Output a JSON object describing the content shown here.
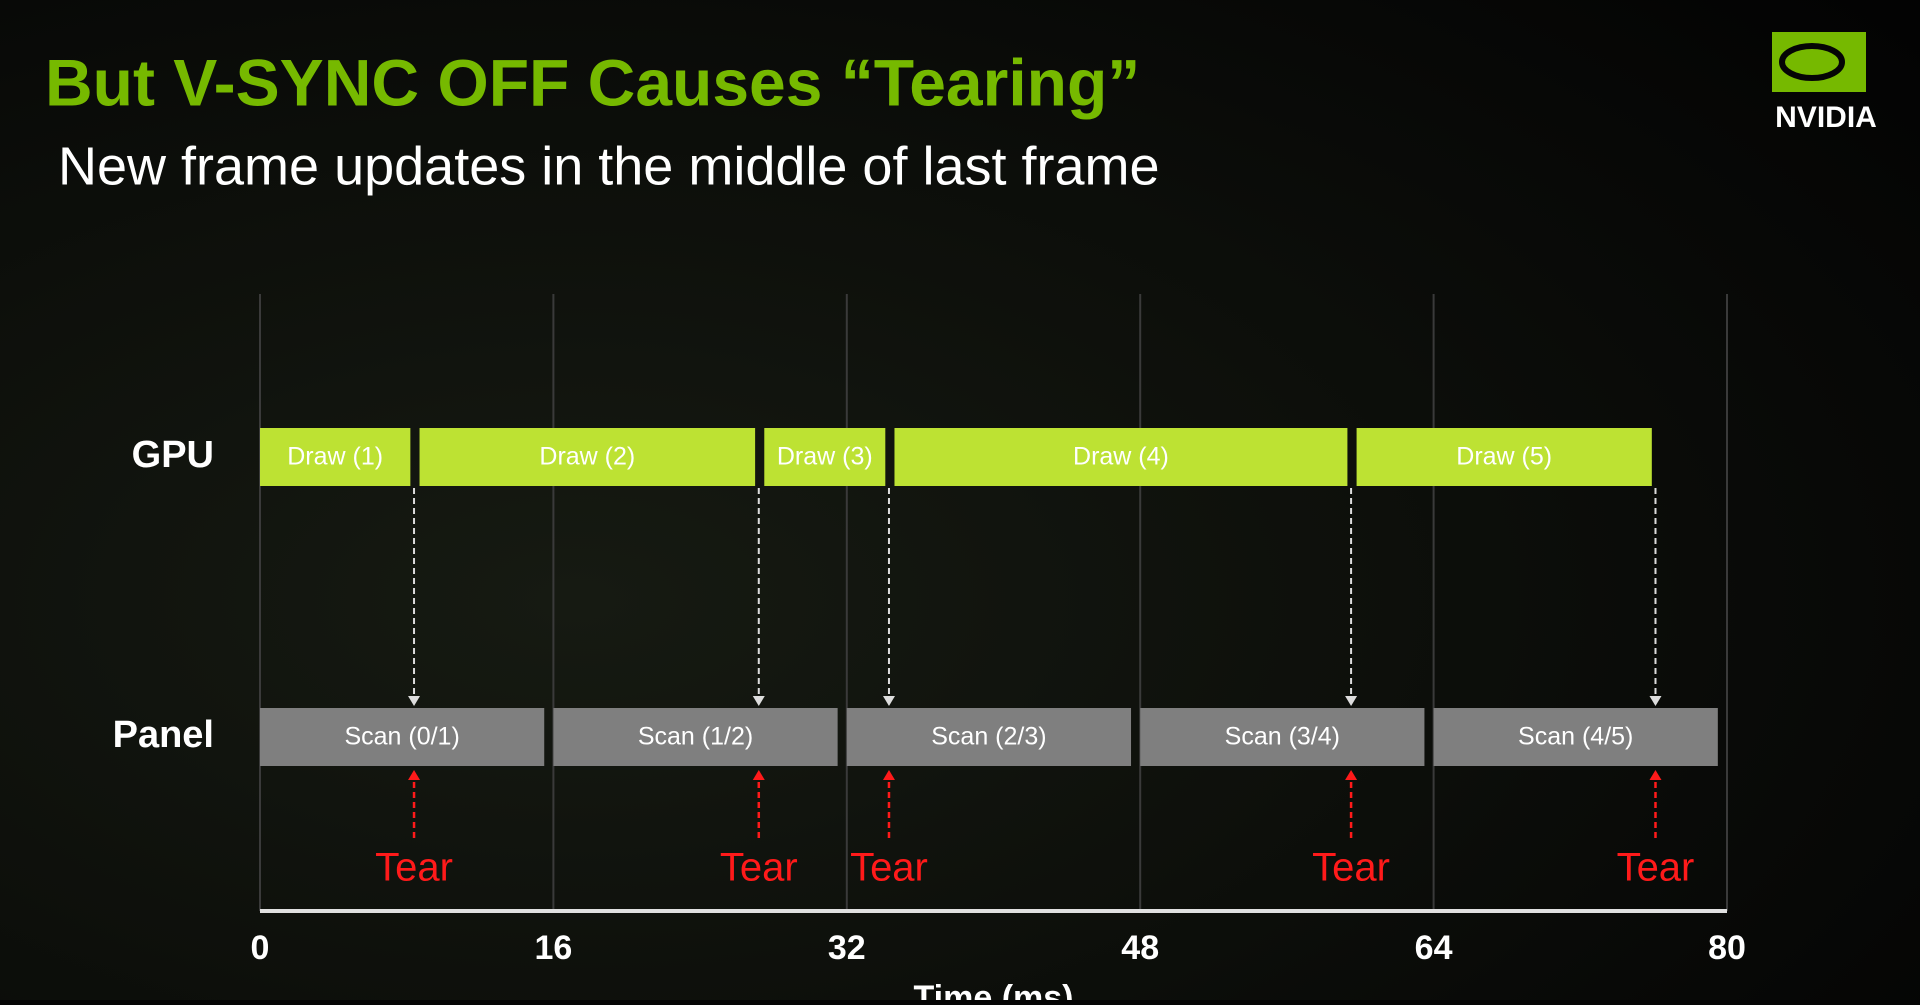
{
  "brand": "NVIDIA",
  "chart_data": {
    "type": "timeline",
    "title": "But V-SYNC OFF Causes “Tearing”",
    "subtitle": "New frame updates in the middle of last frame",
    "x_label": "Time (ms)",
    "xlim": [
      0,
      80
    ],
    "xticks": [
      0,
      16,
      32,
      48,
      64,
      80
    ],
    "grid": true,
    "rows": [
      {
        "name": "GPU",
        "color": "#bde233",
        "labels": [
          "Draw (1)",
          "Draw (2)",
          "Draw (3)",
          "Draw (4)",
          "Draw (5)"
        ],
        "start": [
          0,
          8.7,
          27.5,
          34.6,
          59.8
        ],
        "end": [
          8.2,
          27.0,
          34.1,
          59.3,
          75.9
        ]
      },
      {
        "name": "Panel",
        "color": "#7f7f7f",
        "labels": [
          "Scan (0/1)",
          "Scan (1/2)",
          "Scan (2/3)",
          "Scan (3/4)",
          "Scan (4/5)"
        ],
        "start": [
          0,
          16,
          32,
          48,
          64
        ],
        "end": [
          15.5,
          31.5,
          47.5,
          63.5,
          79.5
        ]
      }
    ],
    "tears": {
      "color": "#ff1a1a",
      "x": [
        8.4,
        27.2,
        34.3,
        59.5,
        76.1
      ],
      "labels": [
        "Tear",
        "Tear",
        "Tear",
        "Tear",
        "Tear"
      ]
    }
  }
}
